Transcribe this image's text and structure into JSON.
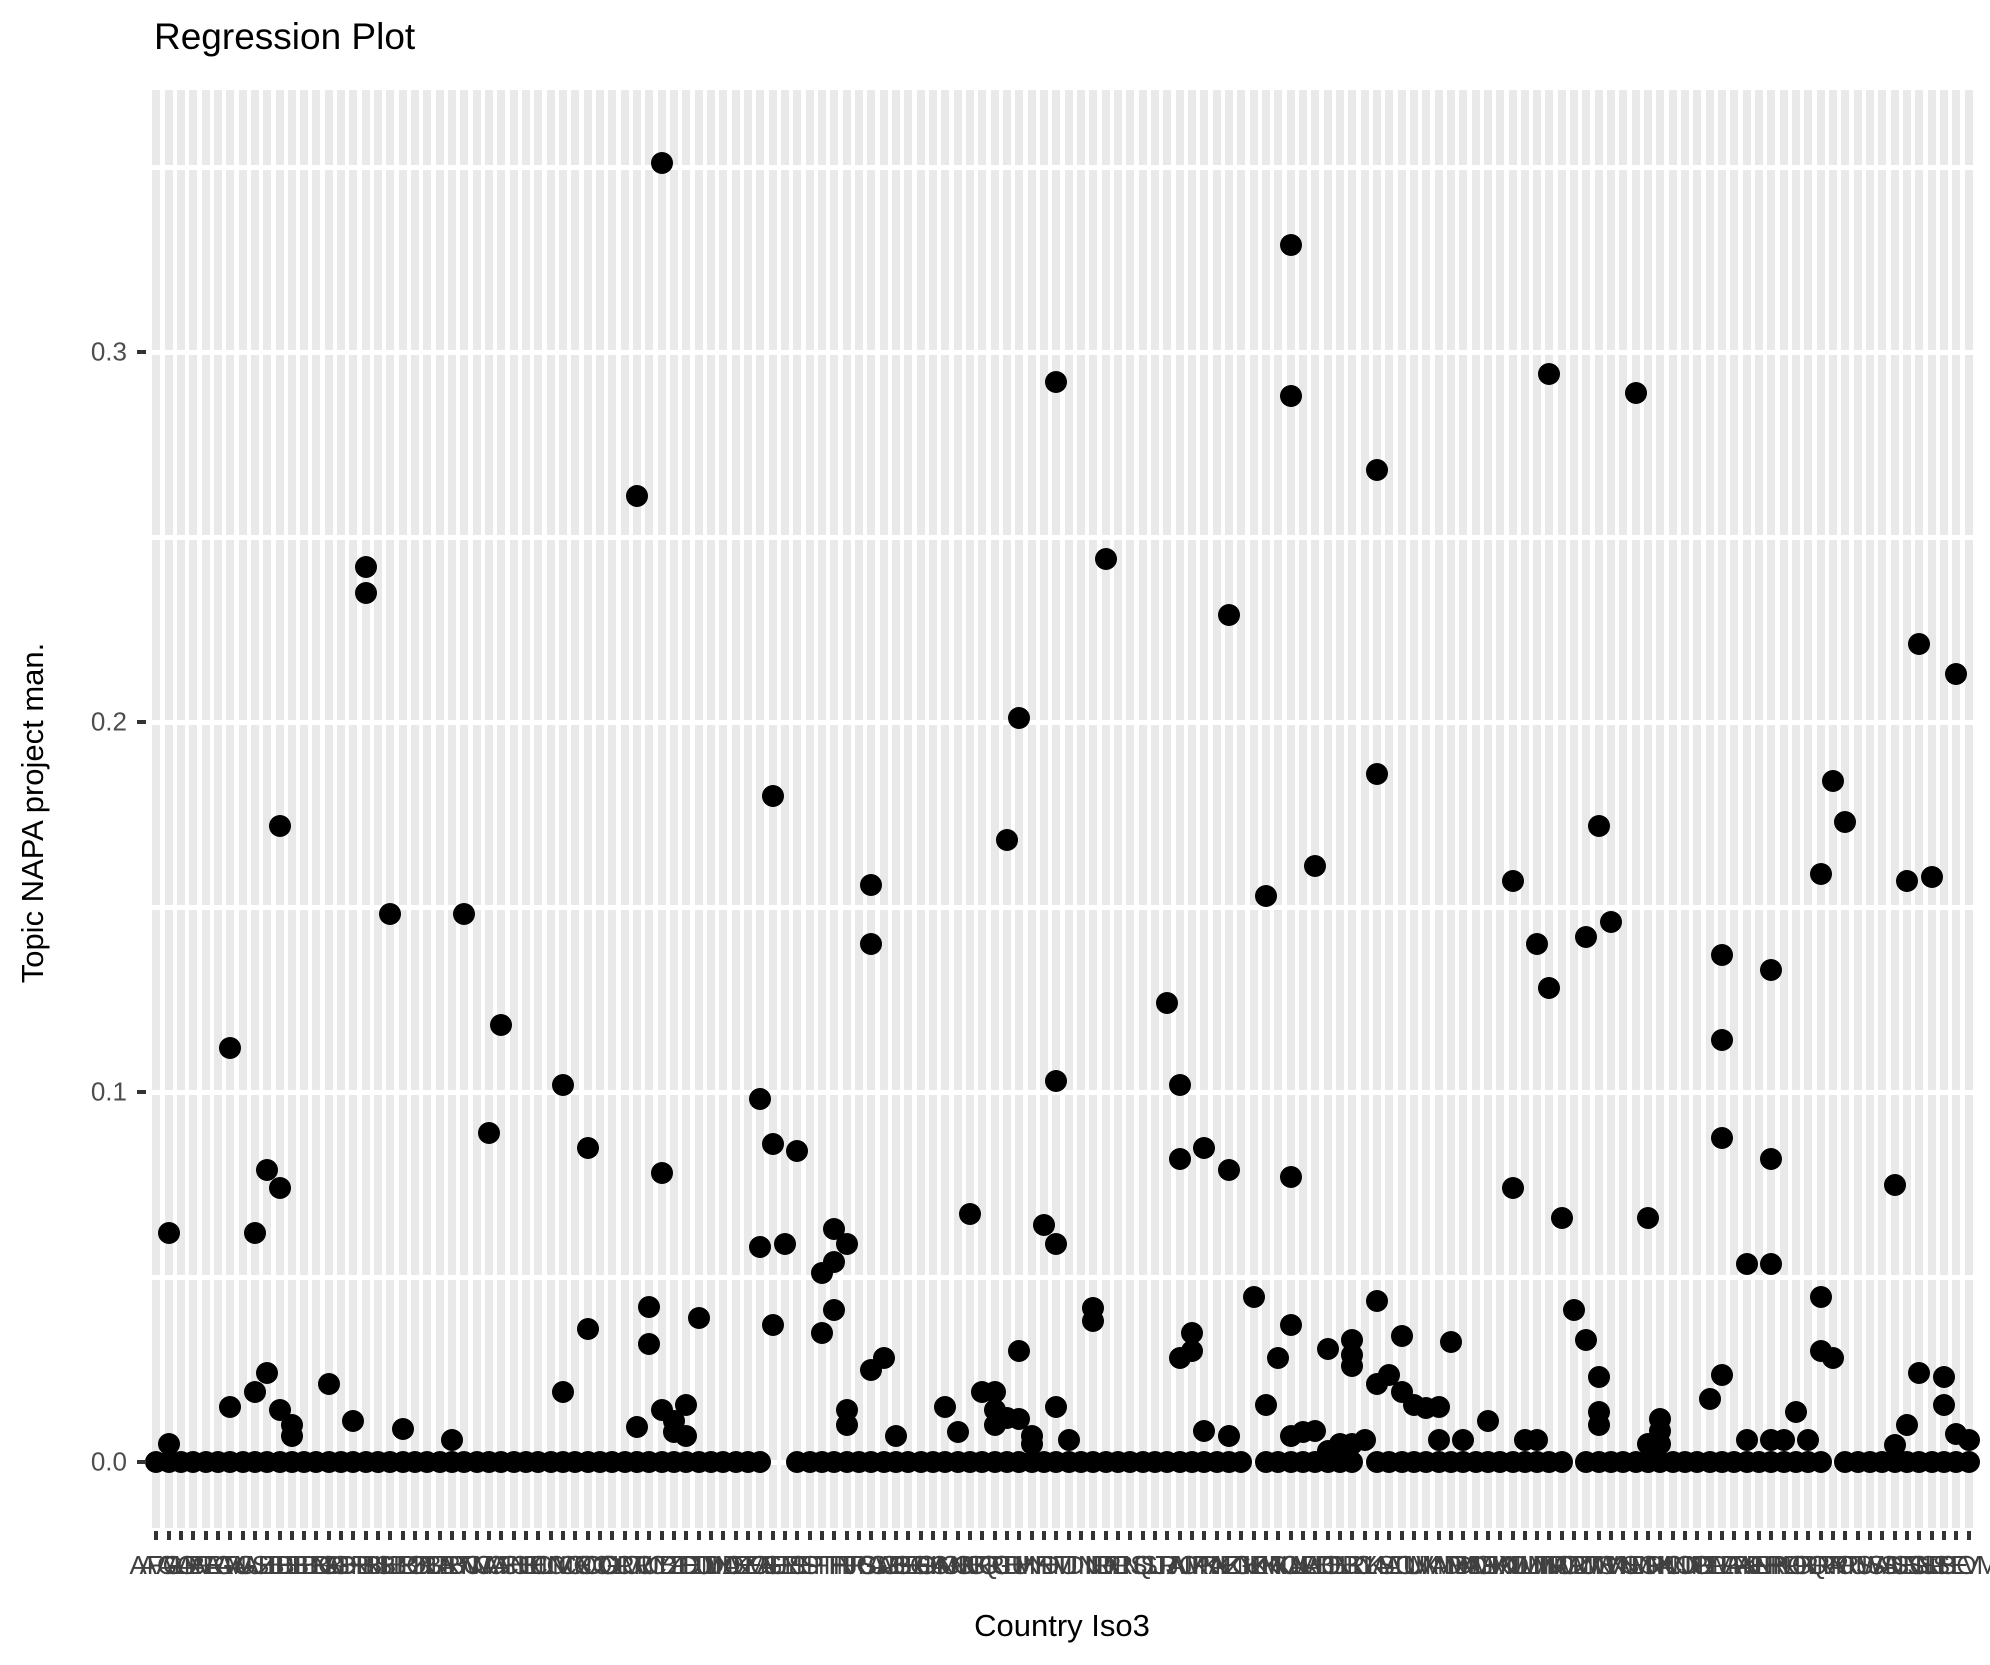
{
  "title": "Regression Plot",
  "axes": {
    "x_title": "Country Iso3",
    "y_title": "Topic NAPA project man.",
    "y_tick_labels": [
      "0.0",
      "0.1",
      "0.2",
      "0.3"
    ],
    "y_tick_values": [
      0,
      0.1,
      0.2,
      0.3
    ]
  },
  "chart_data": {
    "type": "scatter",
    "title": "Regression Plot",
    "xlabel": "Country Iso3",
    "ylabel": "Topic NAPA project man.",
    "ylim": [
      -0.018,
      0.371
    ],
    "gridlines_at": [
      0,
      0.05,
      0.1,
      0.15,
      0.2,
      0.25,
      0.3,
      0.35
    ],
    "legend": "none",
    "point_color": "#000000",
    "stripe_color": "#e9e9e9",
    "tick_color": "#333333",
    "tick_label_color": "#4d4d4d",
    "categories": [
      "AFG",
      "AGO",
      "ALB",
      "ARE",
      "ARG",
      "ARM",
      "ATG",
      "AUS",
      "AUT",
      "AZE",
      "BDI",
      "BEL",
      "BEN",
      "BFA",
      "BGD",
      "BGR",
      "BHR",
      "BHS",
      "BIH",
      "BLR",
      "BLZ",
      "BOL",
      "BRA",
      "BRB",
      "BRN",
      "BTN",
      "BWA",
      "CAF",
      "CAN",
      "CHE",
      "CHL",
      "CHN",
      "CIV",
      "CMR",
      "COD",
      "COG",
      "COL",
      "COM",
      "CPV",
      "CRI",
      "CUB",
      "CYP",
      "CZE",
      "DEU",
      "DJI",
      "DMA",
      "DNK",
      "DOM",
      "DZA",
      "ECU",
      "EGY",
      "ERI",
      "ESP",
      "EST",
      "ETH",
      "FIN",
      "FJI",
      "FRA",
      "FSM",
      "GAB",
      "GBR",
      "GEO",
      "GHA",
      "GIN",
      "GMB",
      "GNB",
      "GNQ",
      "GRC",
      "GRD",
      "GTM",
      "GUY",
      "HND",
      "HRV",
      "HTI",
      "HUN",
      "IDN",
      "IND",
      "IRL",
      "IRN",
      "IRQ",
      "ISL",
      "ISR",
      "ITA",
      "JAM",
      "JOR",
      "JPN",
      "KAZ",
      "KEN",
      "KGZ",
      "KHM",
      "KIR",
      "KNA",
      "KOR",
      "KWT",
      "LAO",
      "LBN",
      "LBR",
      "LBY",
      "LCA",
      "LKA",
      "LSO",
      "LTU",
      "LUX",
      "LVA",
      "MAR",
      "MDA",
      "MDG",
      "MDV",
      "MEX",
      "MKD",
      "MLI",
      "MLT",
      "MMR",
      "MNG",
      "MOZ",
      "MRT",
      "MUS",
      "MWI",
      "MYS",
      "NAM",
      "NER",
      "NGA",
      "NIC",
      "NLD",
      "NOR",
      "NPL",
      "NZL",
      "OMN",
      "PAK",
      "PAN",
      "PER",
      "PHL",
      "PNG",
      "POL",
      "PRT",
      "PRY",
      "QAT",
      "ROU",
      "RUS",
      "RWA",
      "SAU",
      "SDN",
      "SEN",
      "SGP",
      "SLB",
      "SLE",
      "SLV",
      "SOM"
    ],
    "baseline_value": 0,
    "baseline_skip": [
      50,
      51,
      89,
      98,
      115,
      136
    ],
    "points": [
      [
        1,
        0.062
      ],
      [
        1,
        0.005
      ],
      [
        6,
        0.112
      ],
      [
        6,
        0.015
      ],
      [
        8,
        0.062
      ],
      [
        8,
        0.019
      ],
      [
        9,
        0.079
      ],
      [
        9,
        0.024
      ],
      [
        10,
        0.172
      ],
      [
        10,
        0.074
      ],
      [
        10,
        0.014
      ],
      [
        11,
        0.01
      ],
      [
        11,
        0.007
      ],
      [
        14,
        0.021
      ],
      [
        16,
        0.011
      ],
      [
        17,
        0.242
      ],
      [
        17,
        0.235
      ],
      [
        19,
        0.148
      ],
      [
        20,
        0.009
      ],
      [
        24,
        0.006
      ],
      [
        25,
        0.148
      ],
      [
        27,
        0.089
      ],
      [
        28,
        0.118
      ],
      [
        33,
        0.102
      ],
      [
        33,
        0.019
      ],
      [
        35,
        0.085
      ],
      [
        35,
        0.036
      ],
      [
        39,
        0.261
      ],
      [
        39,
        0.0095
      ],
      [
        40,
        0.042
      ],
      [
        40,
        0.032
      ],
      [
        41,
        0.351
      ],
      [
        41,
        0.078
      ],
      [
        41,
        0.014
      ],
      [
        42,
        0.011
      ],
      [
        42,
        0.008
      ],
      [
        43,
        0.0155
      ],
      [
        43,
        0.007
      ],
      [
        44,
        0.039
      ],
      [
        49,
        0.098
      ],
      [
        49,
        0.058
      ],
      [
        50,
        0.18
      ],
      [
        50,
        0.086
      ],
      [
        50,
        0.037
      ],
      [
        51,
        0.059
      ],
      [
        52,
        0.084
      ],
      [
        54,
        0.051
      ],
      [
        54,
        0.035
      ],
      [
        55,
        0.063
      ],
      [
        55,
        0.054
      ],
      [
        55,
        0.041
      ],
      [
        56,
        0.059
      ],
      [
        56,
        0.014
      ],
      [
        56,
        0.01
      ],
      [
        58,
        0.156
      ],
      [
        58,
        0.14
      ],
      [
        58,
        0.025
      ],
      [
        59,
        0.028
      ],
      [
        60,
        0.007
      ],
      [
        64,
        0.015
      ],
      [
        65,
        0.008
      ],
      [
        66,
        0.067
      ],
      [
        67,
        0.019
      ],
      [
        68,
        0.019
      ],
      [
        68,
        0.014
      ],
      [
        68,
        0.01
      ],
      [
        69,
        0.168
      ],
      [
        69,
        0.012
      ],
      [
        70,
        0.201
      ],
      [
        70,
        0.03
      ],
      [
        70,
        0.0115
      ],
      [
        71,
        0.007
      ],
      [
        71,
        0.005
      ],
      [
        72,
        0.064
      ],
      [
        73,
        0.292
      ],
      [
        73,
        0.103
      ],
      [
        73,
        0.059
      ],
      [
        73,
        0.015
      ],
      [
        74,
        0.006
      ],
      [
        76,
        0.0415
      ],
      [
        76,
        0.038
      ],
      [
        77,
        0.244
      ],
      [
        82,
        0.124
      ],
      [
        83,
        0.102
      ],
      [
        83,
        0.082
      ],
      [
        83,
        0.028
      ],
      [
        84,
        0.035
      ],
      [
        84,
        0.03
      ],
      [
        85,
        0.085
      ],
      [
        85,
        0.0085
      ],
      [
        87,
        0.229
      ],
      [
        87,
        0.079
      ],
      [
        87,
        0.007
      ],
      [
        89,
        0.0445
      ],
      [
        90,
        0.153
      ],
      [
        90,
        0.0155
      ],
      [
        91,
        0.028
      ],
      [
        92,
        0.329
      ],
      [
        92,
        0.288
      ],
      [
        92,
        0.077
      ],
      [
        92,
        0.037
      ],
      [
        92,
        0.007
      ],
      [
        93,
        0.008
      ],
      [
        94,
        0.161
      ],
      [
        94,
        0.0085
      ],
      [
        95,
        0.0305
      ],
      [
        95,
        0.003
      ],
      [
        96,
        0.005
      ],
      [
        97,
        0.033
      ],
      [
        97,
        0.029
      ],
      [
        97,
        0.026
      ],
      [
        97,
        0.005
      ],
      [
        98,
        0.006
      ],
      [
        99,
        0.268
      ],
      [
        99,
        0.186
      ],
      [
        99,
        0.0435
      ],
      [
        99,
        0.021
      ],
      [
        100,
        0.0235
      ],
      [
        101,
        0.034
      ],
      [
        101,
        0.019
      ],
      [
        102,
        0.0155
      ],
      [
        103,
        0.0145
      ],
      [
        104,
        0.015
      ],
      [
        104,
        0.006
      ],
      [
        105,
        0.0325
      ],
      [
        106,
        0.006
      ],
      [
        108,
        0.011
      ],
      [
        110,
        0.157
      ],
      [
        110,
        0.074
      ],
      [
        111,
        0.006
      ],
      [
        112,
        0.14
      ],
      [
        112,
        0.006
      ],
      [
        113,
        0.294
      ],
      [
        113,
        0.128
      ],
      [
        114,
        0.066
      ],
      [
        115,
        0.041
      ],
      [
        116,
        0.142
      ],
      [
        116,
        0.033
      ],
      [
        117,
        0.172
      ],
      [
        117,
        0.023
      ],
      [
        117,
        0.0135
      ],
      [
        117,
        0.01
      ],
      [
        118,
        0.146
      ],
      [
        120,
        0.289
      ],
      [
        121,
        0.066
      ],
      [
        121,
        0.005
      ],
      [
        122,
        0.0115
      ],
      [
        122,
        0.0085
      ],
      [
        122,
        0.005
      ],
      [
        126,
        0.017
      ],
      [
        127,
        0.137
      ],
      [
        127,
        0.114
      ],
      [
        127,
        0.0875
      ],
      [
        127,
        0.0235
      ],
      [
        129,
        0.0535
      ],
      [
        129,
        0.006
      ],
      [
        131,
        0.133
      ],
      [
        131,
        0.082
      ],
      [
        131,
        0.0535
      ],
      [
        131,
        0.006
      ],
      [
        132,
        0.006
      ],
      [
        133,
        0.0135
      ],
      [
        134,
        0.006
      ],
      [
        135,
        0.159
      ],
      [
        135,
        0.0445
      ],
      [
        135,
        0.03
      ],
      [
        136,
        0.184
      ],
      [
        136,
        0.028
      ],
      [
        137,
        0.173
      ],
      [
        141,
        0.075
      ],
      [
        141,
        0.0045
      ],
      [
        142,
        0.157
      ],
      [
        142,
        0.01
      ],
      [
        143,
        0.221
      ],
      [
        143,
        0.024
      ],
      [
        144,
        0.158
      ],
      [
        145,
        0.023
      ],
      [
        145,
        0.0155
      ],
      [
        146,
        0.213
      ],
      [
        146,
        0.0075
      ],
      [
        147,
        0.006
      ]
    ]
  }
}
